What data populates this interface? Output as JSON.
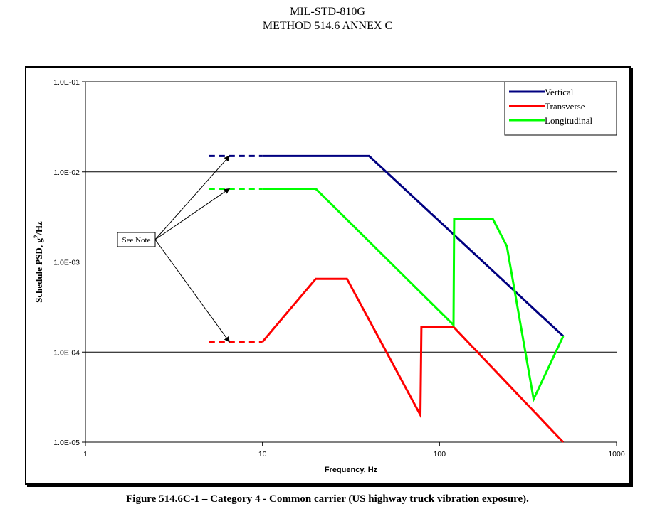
{
  "header": {
    "line1": "MIL-STD-810G",
    "line2": "METHOD 514.6 ANNEX C"
  },
  "caption": "Figure 514.6C-1 – Category 4 - Common carrier (US highway truck vibration exposure).",
  "chart_data": {
    "type": "line",
    "xscale": "log",
    "yscale": "log",
    "xlim": [
      1,
      1000
    ],
    "ylim": [
      1e-05,
      0.1
    ],
    "xlabel": "Frequency, Hz",
    "ylabel_main": "Schedule PSD, g",
    "ylabel_sup": "2",
    "ylabel_tail": "/Hz",
    "x_ticks": [
      {
        "value": 1,
        "label": "1"
      },
      {
        "value": 10,
        "label": "10"
      },
      {
        "value": 100,
        "label": "100"
      },
      {
        "value": 1000,
        "label": "1000"
      }
    ],
    "y_ticks": [
      {
        "value": 0.1,
        "label": "1.0E-01"
      },
      {
        "value": 0.01,
        "label": "1.0E-02"
      },
      {
        "value": 0.001,
        "label": "1.0E-03"
      },
      {
        "value": 0.0001,
        "label": "1.0E-04"
      },
      {
        "value": 1e-05,
        "label": "1.0E-05"
      }
    ],
    "grid": {
      "horizontal": true,
      "vertical": false
    },
    "legend_position": "top-right",
    "series": [
      {
        "name": "Vertical",
        "color": "#000080",
        "points": [
          [
            10,
            0.015
          ],
          [
            40,
            0.015
          ],
          [
            500,
            0.00015
          ]
        ],
        "dashed_extension": {
          "from": 5,
          "to": 10,
          "value": 0.015
        }
      },
      {
        "name": "Transverse",
        "color": "#ff0000",
        "points": [
          [
            10,
            0.00013
          ],
          [
            20,
            0.00065
          ],
          [
            30,
            0.00065
          ],
          [
            78,
            2e-05
          ],
          [
            79,
            0.00019
          ],
          [
            120,
            0.00019
          ],
          [
            500,
            1e-05
          ]
        ],
        "dashed_extension": {
          "from": 5,
          "to": 10,
          "value": 0.00013
        }
      },
      {
        "name": "Longitudinal",
        "color": "#00ff00",
        "points": [
          [
            10,
            0.0065
          ],
          [
            20,
            0.0065
          ],
          [
            120,
            0.0002
          ],
          [
            121,
            0.003
          ],
          [
            200,
            0.003
          ],
          [
            240,
            0.0015
          ],
          [
            340,
            3e-05
          ],
          [
            500,
            0.00015
          ]
        ],
        "dashed_extension": {
          "from": 5,
          "to": 10,
          "value": 0.0065
        }
      }
    ],
    "annotation": {
      "text": "See Note",
      "arrow_targets": [
        [
          6.5,
          0.015
        ],
        [
          6.5,
          0.0065
        ],
        [
          6.5,
          0.00013
        ]
      ]
    }
  }
}
